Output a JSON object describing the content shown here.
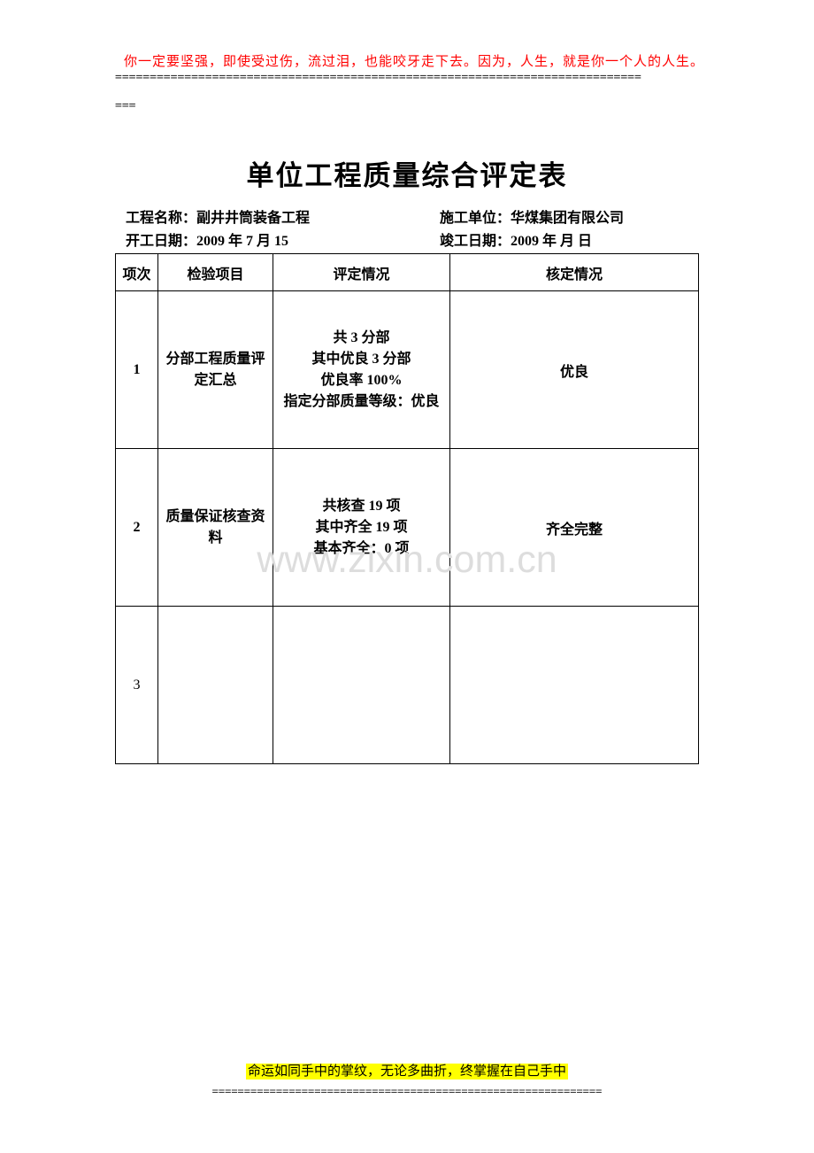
{
  "header_quote": "你一定要坚强，即使受过伤，流过泪，也能咬牙走下去。因为，人生，就是你一个人的人生。",
  "separator_top": "============================================================================",
  "separator_top_cont": "===",
  "title": "单位工程质量综合评定表",
  "meta": {
    "project_name_label": "工程名称：",
    "project_name": "副井井筒装备工程",
    "contractor_label": "施工单位：",
    "contractor": "华煤集团有限公司",
    "start_date_label": "开工日期：",
    "start_date": "2009 年 7 月 15",
    "end_date_label": "竣工日期：",
    "end_date": "2009 年     月     日"
  },
  "table": {
    "headers": {
      "index": "项次",
      "item": "检验项目",
      "evaluation": "评定情况",
      "verification": "核定情况"
    },
    "rows": [
      {
        "index": "1",
        "item": "分部工程质量评定汇总",
        "eval_line1": "共 3 分部",
        "eval_line2": "其中优良 3 分部",
        "eval_line3": "优良率 100%",
        "eval_line4": "指定分部质量等级：优良",
        "verification": "优良"
      },
      {
        "index": "2",
        "item": "质量保证核查资料",
        "eval_line1": "共核查 19 项",
        "eval_line2": "其中齐全 19 项",
        "eval_line3": "基本齐全：0 项",
        "eval_line4": "",
        "verification": "齐全完整"
      },
      {
        "index": "3",
        "item": "",
        "eval_line1": "",
        "eval_line2": "",
        "eval_line3": "",
        "eval_line4": "",
        "verification": ""
      }
    ]
  },
  "watermark": "www.zixin.com.cn",
  "footer_quote": "命运如同手中的掌纹，无论多曲折，终掌握在自己手中",
  "separator_bottom": "=============================================================",
  "colors": {
    "quote_color": "#ff0000",
    "highlight_bg": "#ffff00",
    "border_color": "#000000",
    "watermark_color": "#dddddd",
    "background": "#ffffff"
  }
}
